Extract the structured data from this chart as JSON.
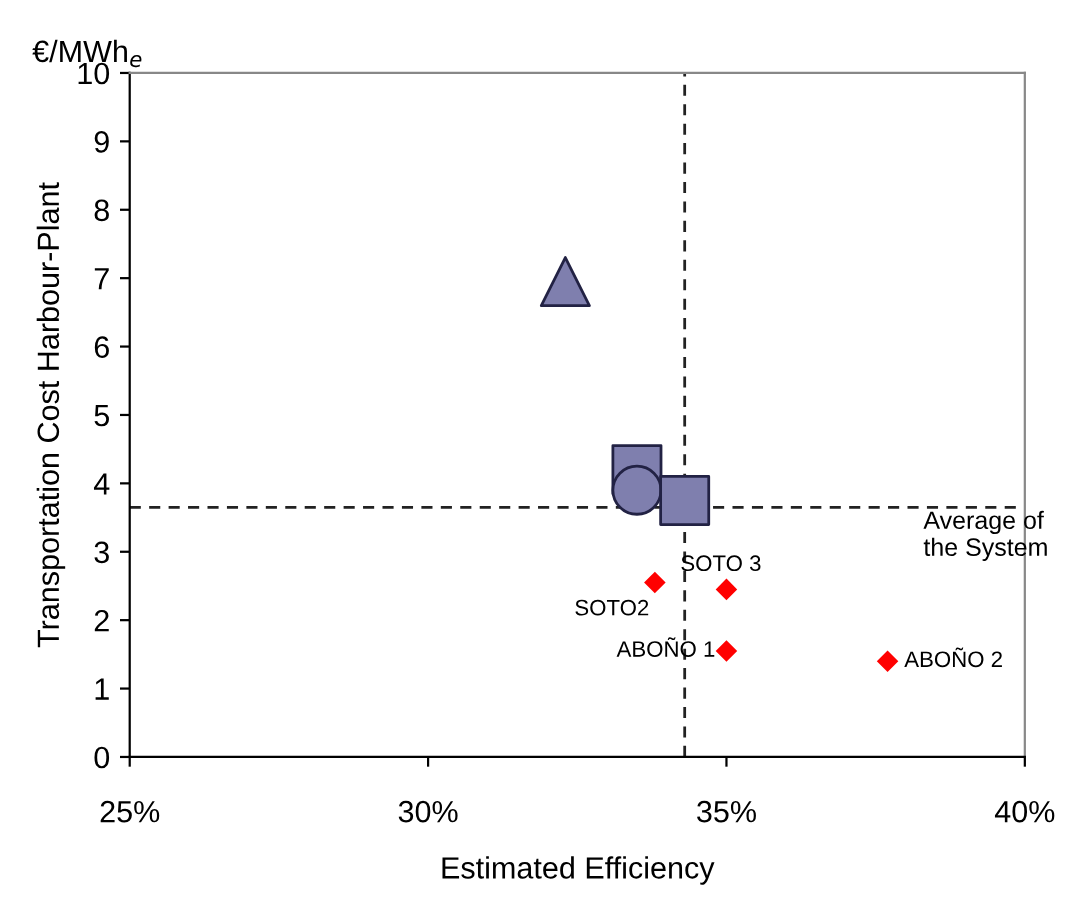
{
  "chart_data": {
    "type": "scatter",
    "xlabel": "Estimated Efficiency",
    "ylabel": "Transportation Cost Harbour-Plant",
    "xlim": [
      25,
      40
    ],
    "xticks": [
      {
        "value": 25,
        "label": "25%"
      },
      {
        "value": 30,
        "label": "30%"
      },
      {
        "value": 35,
        "label": "35%"
      },
      {
        "value": 40,
        "label": "40%"
      }
    ],
    "ylim": [
      0,
      10
    ],
    "yticks": [
      0,
      1,
      2,
      3,
      4,
      5,
      6,
      7,
      8,
      9,
      10
    ],
    "grid": false,
    "series": [
      {
        "marker": "triangle",
        "color": "#7f7fae",
        "x": [
          32.3
        ],
        "values": [
          6.95
        ]
      },
      {
        "marker": "square",
        "color": "#7f7fae",
        "x": [
          33.5
        ],
        "values": [
          4.2
        ]
      },
      {
        "marker": "circle",
        "color": "#7f7fae",
        "x": [
          33.5
        ],
        "values": [
          3.9
        ]
      },
      {
        "marker": "square",
        "color": "#7f7fae",
        "x": [
          34.3
        ],
        "values": [
          3.75
        ]
      },
      {
        "marker": "diamond",
        "color": "#ff0000",
        "x": [
          33.8,
          35.0,
          35.0,
          37.7
        ],
        "values": [
          2.55,
          2.45,
          1.55,
          1.4
        ]
      }
    ],
    "ref_lines": [
      {
        "axis": "x",
        "value": 34.3,
        "label": null,
        "line_style": "dashed"
      },
      {
        "axis": "y",
        "value": 3.65,
        "label": "Average of\nthe System",
        "line_style": "dashed"
      }
    ],
    "annotations": [
      "€/MWh$_{e}$",
      {
        "text": "SOTO2",
        "x": 33.8,
        "y": 2.55
      },
      {
        "text": "SOTO 3",
        "x": 35.0,
        "y": 2.45
      },
      {
        "text": "ABOÑO 1",
        "x": 35.0,
        "y": 1.55
      },
      {
        "text": "ABOÑO 2",
        "x": 37.7,
        "y": 1.4
      }
    ]
  }
}
